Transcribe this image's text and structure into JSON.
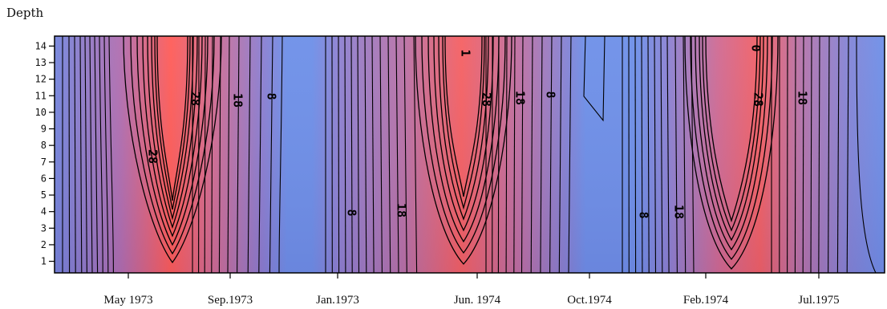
{
  "chart_data": {
    "type": "heatmap",
    "ylabel": "Depth",
    "xlabel": "",
    "yticks": [
      "1",
      "2",
      "3",
      "4",
      "5",
      "6",
      "7",
      "8",
      "9",
      "10",
      "11",
      "12",
      "13",
      "14"
    ],
    "xticks": [
      "May 1973",
      "Sep.1973",
      "Jan.1973",
      "Jun. 1974",
      "Oct.1974",
      "Feb.1974",
      "Jul.1975"
    ],
    "ylim": [
      0.3,
      14.6
    ],
    "colors": {
      "low": "#6f8fe6",
      "high": "#ff5a55",
      "contour": "#000000"
    },
    "cycles": [
      {
        "peak_label": "28",
        "mid_label": "18",
        "low_label": "8"
      },
      {
        "peak_label": "28",
        "mid_label": "18",
        "low_label": "8",
        "top_label": "1"
      },
      {
        "peak_label": "28",
        "mid_label": "18",
        "low_label": "8",
        "top_label": "0"
      }
    ],
    "contour_labels": [
      "28",
      "28",
      "18",
      "8",
      "8",
      "18",
      "1",
      "28",
      "18",
      "8",
      "8",
      "18",
      "0",
      "28",
      "18"
    ]
  }
}
